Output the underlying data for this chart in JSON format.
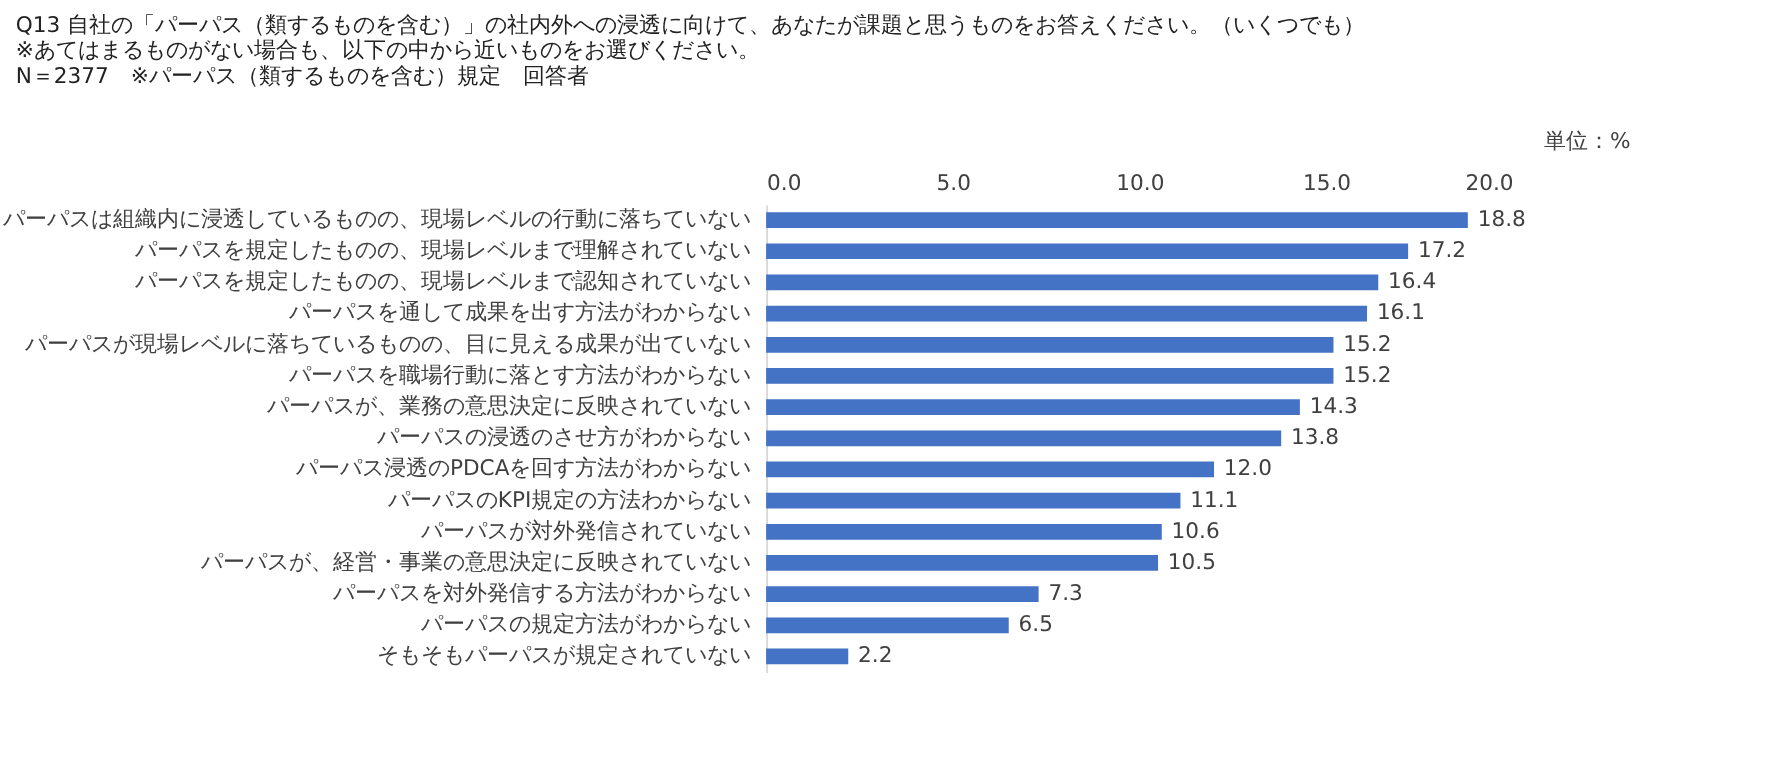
{
  "chart_data": {
    "type": "bar",
    "orientation": "horizontal",
    "title": "Q13 自社の「パーパス（類するものを含む）」の社内外への浸透に向けて、あなたが課題と思うものをお答えください。（いくつでも）",
    "subtitle": [
      "※あてはまるものがない場合も、以下の中から近いものをお選びください。",
      "N＝2377　※パーパス（類するものを含む）規定　回答者"
    ],
    "annotations": [
      "単位：%"
    ],
    "categories": [
      "パーパスは組織内に浸透しているものの、現場レベルの行動に落ちていない",
      "パーパスを規定したものの、現場レベルまで理解されていない",
      "パーパスを規定したものの、現場レベルまで認知されていない",
      "パーパスを通して成果を出す方法がわからない",
      "パーパスが現場レベルに落ちているものの、目に見える成果が出ていない",
      "パーパスを職場行動に落とす方法がわからない",
      "パーパスが、業務の意思決定に反映されていない",
      "パーパスの浸透のさせ方がわからない",
      "パーパス浸透のPDCAを回す方法がわからない",
      "パーパスのKPI規定の方法わからない",
      "パーパスが対外発信されていない",
      "パーパスが、経営・事業の意思決定に反映されていない",
      "パーパスを対外発信する方法がわからない",
      "パーパスの規定方法がわからない",
      "そもそもパーパスが規定されていない"
    ],
    "values": [
      18.8,
      17.2,
      16.4,
      16.1,
      15.2,
      15.2,
      14.3,
      13.8,
      12.0,
      11.1,
      10.6,
      10.5,
      7.3,
      6.5,
      2.2
    ],
    "value_labels": [
      "18.8",
      "17.2",
      "16.4",
      "16.1",
      "15.2",
      "15.2",
      "14.3",
      "13.8",
      "12.0",
      "11.1",
      "10.6",
      "10.5",
      "7.3",
      "6.5",
      "2.2"
    ],
    "color": "#4472c4",
    "xlim": [
      0,
      20
    ],
    "xticks": [
      {
        "value": 0,
        "label": "0.0"
      },
      {
        "value": 5,
        "label": "5.0"
      },
      {
        "value": 10,
        "label": "10.0"
      },
      {
        "value": 15,
        "label": "15.0"
      },
      {
        "value": 20,
        "label": "20.0"
      }
    ],
    "grid": false
  }
}
